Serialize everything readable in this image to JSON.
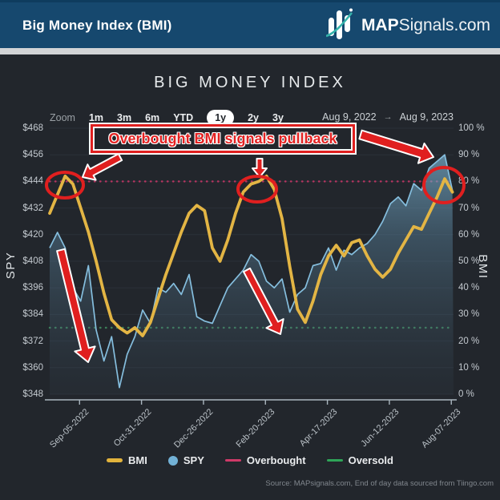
{
  "header": {
    "title": "Big Money Index (BMI)",
    "brand_bold": "MAP",
    "brand_rest": "Signals.com"
  },
  "chart": {
    "title": "BIG MONEY INDEX",
    "toolbar": {
      "zoom_label": "Zoom",
      "ranges": [
        "1m",
        "3m",
        "6m",
        "YTD",
        "1y",
        "2y",
        "3y"
      ],
      "selected_range": "1y",
      "range_from": "Aug 9, 2022",
      "range_arrow": "→",
      "range_to": "Aug 9, 2023"
    },
    "left_axis_title": "SPY",
    "right_axis_title": "BMI"
  },
  "annotation": {
    "text": "Overbought BMI signals pullback"
  },
  "legend": [
    {
      "label": "BMI",
      "color": "#e2b33c",
      "shape": "dash"
    },
    {
      "label": "SPY",
      "color": "#72b1d6",
      "shape": "circle"
    },
    {
      "label": "Overbought",
      "color": "#cf3a68",
      "shape": "dash"
    },
    {
      "label": "Oversold",
      "color": "#2ea558",
      "shape": "dash"
    }
  ],
  "source": "Source: MAPsignals.com, End of day data sourced from Tiingo.com",
  "colors": {
    "header_bg": "#16486e",
    "chart_bg": "#22262c",
    "gridline": "#2b3038",
    "bmi_line": "#e3b544",
    "spy_line": "#85bede",
    "overbought_dots": "#b43560",
    "oversold_dots": "#3c7f59",
    "annotation_red": "#e01f1f",
    "axis_line": "#aab6bf"
  },
  "chart_data": {
    "type": "line",
    "title": "BIG MONEY INDEX",
    "start_date": "Aug 9, 2022",
    "end_date": "Aug 9, 2023",
    "x_range_days": 365,
    "sample_interval_days": 7,
    "x_tick_labels": [
      "Sep-05-2022",
      "Oct-31-2022",
      "Dec-26-2022",
      "Feb-20-2023",
      "Apr-17-2023",
      "Jun-12-2023",
      "Aug-07-2023"
    ],
    "x_tick_days": [
      27,
      83,
      139,
      195,
      251,
      307,
      363
    ],
    "left_axis": {
      "label": "SPY",
      "min": 348,
      "max": 468,
      "step": 12,
      "unit": "$"
    },
    "right_axis": {
      "label": "BMI",
      "min": 0,
      "max": 100,
      "step": 10,
      "unit": "%"
    },
    "overbought_pct": 80,
    "oversold_pct": 25,
    "grid": true,
    "legend_position": "bottom",
    "series": [
      {
        "name": "BMI",
        "axis": "right",
        "color": "#e3b544",
        "style": "line",
        "values": [
          68,
          75,
          82,
          79,
          70,
          61,
          50,
          38,
          28,
          25,
          23,
          25,
          22,
          27,
          36,
          45,
          53,
          61,
          68,
          71,
          69,
          55,
          50,
          58,
          68,
          76,
          79,
          80,
          82,
          77,
          66,
          48,
          32,
          27,
          35,
          45,
          52,
          56,
          52,
          57,
          58,
          52,
          47,
          44,
          47,
          53,
          58,
          63,
          62,
          68,
          74,
          81,
          76
        ]
      },
      {
        "name": "SPY",
        "axis": "left",
        "color": "#85bede",
        "style": "area",
        "values": [
          414,
          421,
          414,
          396,
          390,
          406,
          377,
          363,
          374,
          351,
          366,
          374,
          386,
          380,
          396,
          394,
          398,
          393,
          402,
          383,
          381,
          380,
          388,
          396,
          400,
          404,
          411,
          408,
          399,
          396,
          400,
          385,
          393,
          396,
          406,
          407,
          414,
          404,
          413,
          411,
          414,
          416,
          420,
          426,
          434,
          437,
          433,
          443,
          440,
          450,
          453,
          456,
          440
        ]
      }
    ],
    "annotations": {
      "label": "Overbought BMI signals pullback",
      "circled_bmi_peaks": [
        {
          "approx_date": "Aug 23, 2022",
          "bmi_pct": 82
        },
        {
          "approx_date": "Feb 21, 2023",
          "bmi_pct": 82
        },
        {
          "approx_date": "Aug 1, 2023",
          "bmi_pct": 81
        }
      ]
    }
  }
}
